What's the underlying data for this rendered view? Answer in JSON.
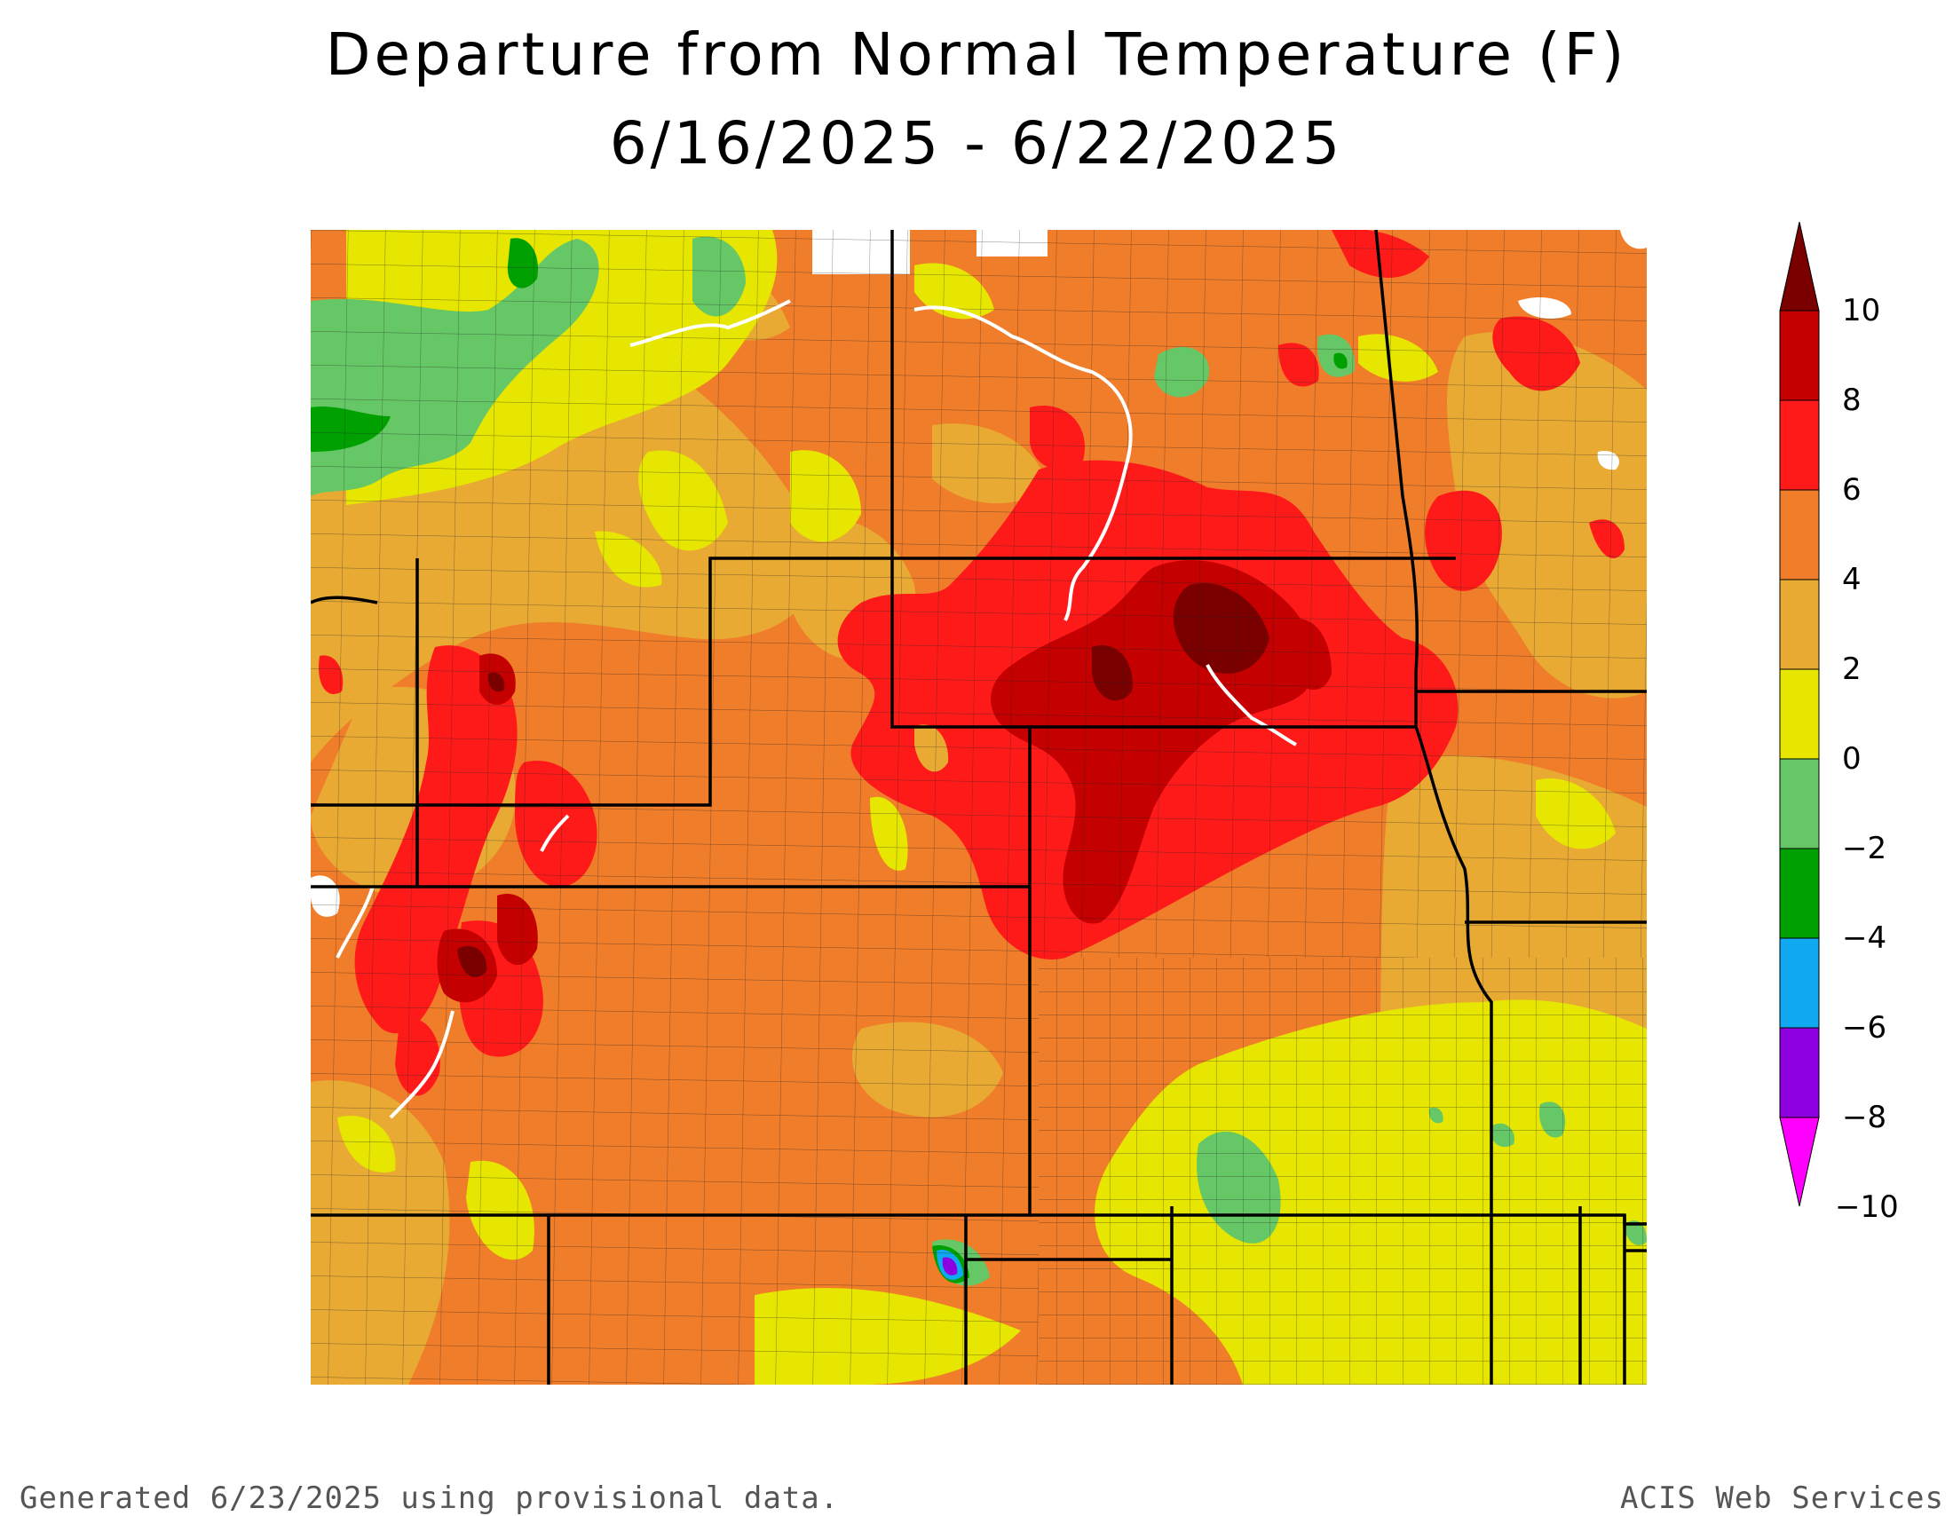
{
  "title": {
    "line1": "Departure from Normal Temperature (F)",
    "line2": "6/16/2025 - 6/22/2025"
  },
  "legend": {
    "labels": [
      "10",
      "8",
      "6",
      "4",
      "2",
      "0",
      "−2",
      "−4",
      "−6",
      "−8",
      "−10"
    ],
    "colors": [
      "#7a0000",
      "#c40000",
      "#ff1a1a",
      "#f07d2a",
      "#e8aa33",
      "#e6e600",
      "#66c766",
      "#00a000",
      "#10a8f0",
      "#8c00e0",
      "#ff00ff"
    ]
  },
  "map": {
    "colors": {
      "cat_10": "#7a0000",
      "cat_8": "#c40000",
      "cat_6": "#ff1a1a",
      "cat_4": "#f07d2a",
      "cat_2": "#e8aa33",
      "cat_0": "#e6e600",
      "cat_m2": "#66c766",
      "cat_m4": "#00a000",
      "cat_m6": "#10a8f0",
      "cat_m8": "#8c00e0"
    }
  },
  "footer": {
    "left": "Generated 6/23/2025 using provisional data.",
    "right": "ACIS Web Services"
  }
}
